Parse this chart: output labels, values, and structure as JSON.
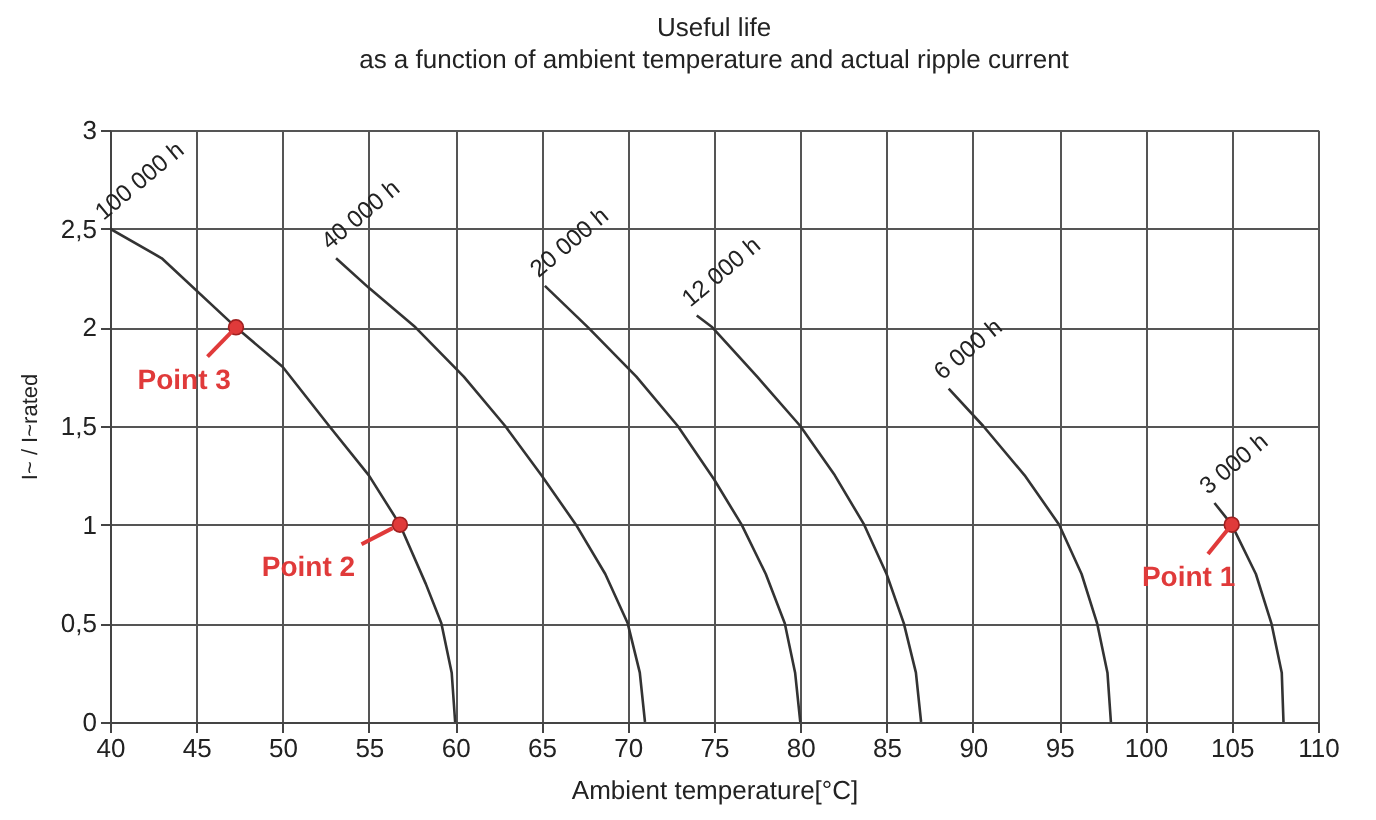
{
  "chart_data": {
    "type": "line",
    "title": "Useful life",
    "subtitle": "as a function of ambient temperature and actual ripple current",
    "xlabel": "Ambient temperature[°C]",
    "ylabel": "I~ / I~rated",
    "xlim": [
      40,
      110
    ],
    "xticks": [
      40,
      45,
      50,
      55,
      60,
      65,
      70,
      75,
      80,
      85,
      90,
      95,
      100,
      105,
      110
    ],
    "ylim": [
      0,
      3
    ],
    "yticks": [
      0,
      {
        "value": 0.5,
        "label": "0,5"
      },
      1,
      {
        "value": 1.5,
        "label": "1,5"
      },
      2,
      {
        "value": 2.5,
        "label": "2,5"
      },
      3
    ],
    "grid": true,
    "marker": "none",
    "line_style": "solid",
    "series": [
      {
        "name": "100 000 h",
        "color": "#333333",
        "x": [
          40,
          43,
          47.3,
          50,
          52.7,
          55,
          56.8,
          58.3,
          59.2,
          59.8,
          60
        ],
        "values": [
          2.5,
          2.35,
          2.0,
          1.8,
          1.5,
          1.25,
          1.0,
          0.7,
          0.5,
          0.25,
          0
        ]
      },
      {
        "name": "40 000 h",
        "color": "#333333",
        "x": [
          53.1,
          55,
          57.7,
          60.5,
          62.9,
          65,
          67,
          68.7,
          70,
          70.7,
          71
        ],
        "values": [
          2.35,
          2.2,
          2.0,
          1.75,
          1.5,
          1.25,
          1.0,
          0.75,
          0.5,
          0.25,
          0
        ]
      },
      {
        "name": "20 000 h",
        "color": "#333333",
        "x": [
          65.2,
          67.7,
          70.5,
          72.9,
          75,
          76.6,
          78,
          79.1,
          79.7,
          80
        ],
        "values": [
          2.21,
          2.0,
          1.75,
          1.5,
          1.23,
          1.0,
          0.75,
          0.5,
          0.25,
          0
        ]
      },
      {
        "name": "12 000 h",
        "color": "#333333",
        "x": [
          74,
          74.9,
          77.5,
          80,
          82,
          83.7,
          85,
          86,
          86.7,
          87
        ],
        "values": [
          2.06,
          2.0,
          1.75,
          1.5,
          1.25,
          1.0,
          0.75,
          0.5,
          0.25,
          0
        ]
      },
      {
        "name": "6 000 h",
        "color": "#333333",
        "x": [
          88.6,
          90.6,
          93,
          95,
          96.3,
          97.2,
          97.8,
          98
        ],
        "values": [
          1.69,
          1.5,
          1.25,
          1.0,
          0.75,
          0.5,
          0.25,
          0
        ]
      },
      {
        "name": "3 000 h",
        "color": "#333333",
        "x": [
          104,
          105,
          106.4,
          107.3,
          107.9,
          108
        ],
        "values": [
          1.11,
          1.0,
          0.75,
          0.5,
          0.25,
          0
        ]
      },
      {
        "type": "scatter",
        "marker": "circle",
        "color": "#e03a3a",
        "x": [
          105,
          56.8,
          47.3
        ],
        "values": [
          1,
          1,
          2
        ]
      }
    ],
    "annotations": [
      {
        "text": "Point 1",
        "x": 105,
        "y": 1
      },
      {
        "text": "Point 2",
        "x": 56.8,
        "y": 1
      },
      {
        "text": "Point 3",
        "x": 47.3,
        "y": 2
      }
    ]
  }
}
